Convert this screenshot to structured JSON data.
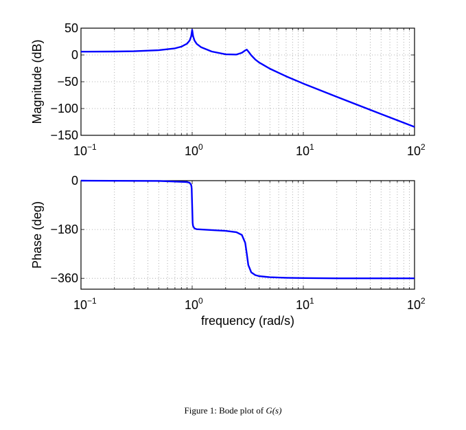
{
  "caption": {
    "prefix": "Figure 1: Bode plot of ",
    "math": "G(s)"
  },
  "chart_data": [
    {
      "type": "line",
      "xscale": "log",
      "xlim": [
        0.1,
        100
      ],
      "ylim": [
        -150,
        50
      ],
      "xticks": [
        {
          "base": "10",
          "exp": "−1"
        },
        {
          "base": "10",
          "exp": "0"
        },
        {
          "base": "10",
          "exp": "1"
        },
        {
          "base": "10",
          "exp": "2"
        }
      ],
      "yticks": [
        50,
        0,
        -50,
        -100,
        -150
      ],
      "ytick_labels": [
        "50",
        "0",
        "−50",
        "−100",
        "−150"
      ],
      "xlabel": "",
      "ylabel": "Magnitude (dB)",
      "grid": true,
      "color": "#0000ff",
      "x": [
        0.1,
        0.2,
        0.3,
        0.5,
        0.7,
        0.8,
        0.9,
        0.95,
        0.98,
        1.0,
        1.02,
        1.05,
        1.1,
        1.2,
        1.5,
        2,
        2.5,
        2.8,
        3.0,
        3.1,
        3.2,
        3.4,
        3.7,
        4,
        5,
        7,
        10,
        20,
        50,
        100
      ],
      "y": [
        6.1,
        6.4,
        6.9,
        8.8,
        12.3,
        15.5,
        21.2,
        27.1,
        35,
        47,
        34.9,
        26.9,
        20.7,
        14.6,
        6.4,
        1.2,
        0.75,
        4.0,
        8.4,
        10,
        6.6,
        -0.6,
        -8.6,
        -14,
        -25.7,
        -39.9,
        -53.4,
        -78.2,
        -110.2,
        -134.3
      ]
    },
    {
      "type": "line",
      "xscale": "log",
      "xlim": [
        0.1,
        100
      ],
      "ylim": [
        -400,
        0
      ],
      "xticks": [
        {
          "base": "10",
          "exp": "−1"
        },
        {
          "base": "10",
          "exp": "0"
        },
        {
          "base": "10",
          "exp": "1"
        },
        {
          "base": "10",
          "exp": "2"
        }
      ],
      "yticks": [
        0,
        -180,
        -360
      ],
      "ytick_labels": [
        "0",
        "−180",
        "−360"
      ],
      "xlabel": "frequency (rad/s)",
      "ylabel": "Phase (deg)",
      "grid": true,
      "color": "#0000ff",
      "x": [
        0.1,
        0.5,
        0.9,
        0.95,
        0.98,
        0.99,
        1.0,
        1.01,
        1.02,
        1.05,
        1.1,
        1.5,
        2,
        2.5,
        2.8,
        3.0,
        3.1,
        3.2,
        3.4,
        3.7,
        4,
        5,
        7,
        10,
        20,
        100
      ],
      "y": [
        0,
        -1,
        -5,
        -8,
        -16,
        -28,
        -92,
        -156,
        -168,
        -176,
        -179,
        -182,
        -185,
        -190,
        -200,
        -229,
        -270,
        -311,
        -338,
        -348,
        -352,
        -356,
        -358,
        -359,
        -360,
        -360
      ]
    }
  ]
}
